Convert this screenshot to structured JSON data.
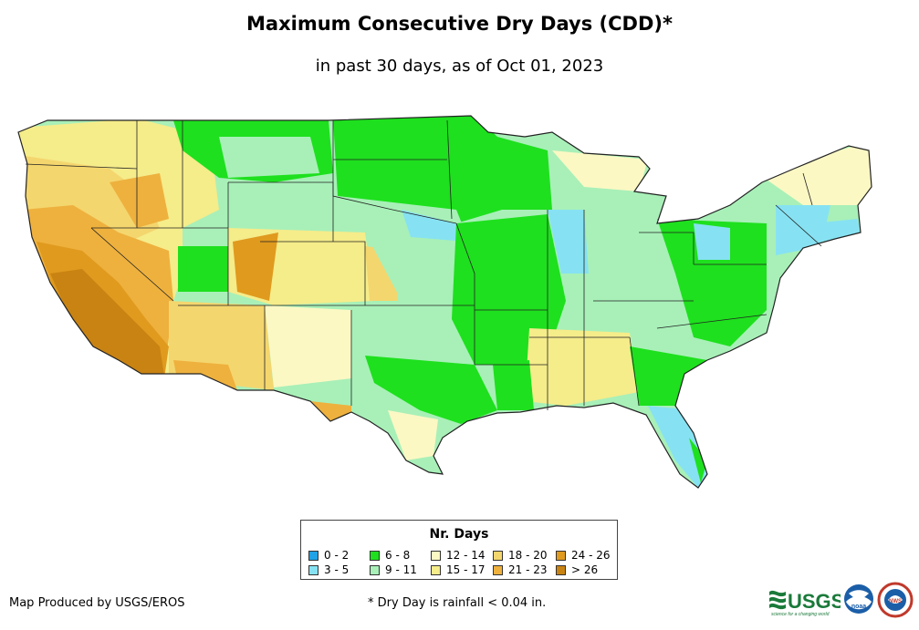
{
  "title": "Maximum Consecutive Dry Days (CDD)*",
  "subtitle": "in past 30 days, as of Oct 01, 2023",
  "legend": {
    "title": "Nr. Days",
    "items": [
      {
        "label": "0 - 2",
        "color": "#1fa2e6"
      },
      {
        "label": "3 - 5",
        "color": "#86e2f2"
      },
      {
        "label": "6 - 8",
        "color": "#1ee01e"
      },
      {
        "label": "9 - 11",
        "color": "#a8f0b8"
      },
      {
        "label": "12 - 14",
        "color": "#fbf8c4"
      },
      {
        "label": "15 - 17",
        "color": "#f5ec8a"
      },
      {
        "label": "18 - 20",
        "color": "#f4d66e"
      },
      {
        "label": "21 - 23",
        "color": "#eeb13e"
      },
      {
        "label": "24 - 26",
        "color": "#e09a1e"
      },
      {
        "label": "> 26",
        "color": "#c98312"
      }
    ]
  },
  "credit": "Map Produced by USGS/EROS",
  "footnote": "* Dry Day is rainfall < 0.04 in.",
  "logos": {
    "usgs_text": "USGS",
    "usgs_tagline": "science for a changing world",
    "noaa_text": "noaa",
    "nws_text": "NWS"
  }
}
